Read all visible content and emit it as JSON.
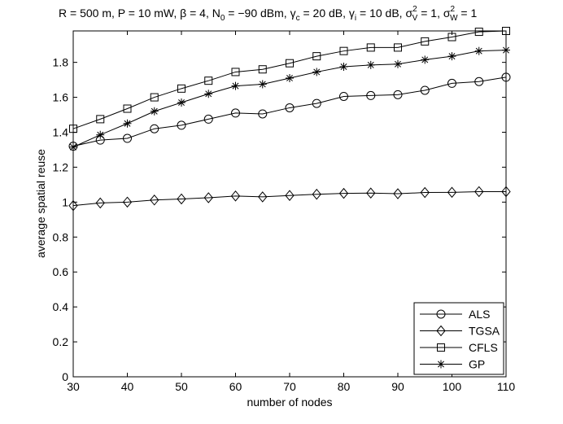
{
  "chart_data": {
    "type": "line",
    "title_parts": {
      "p1": "R = 500 m, P = 10 mW, ",
      "beta": "β",
      "p2": " = 4, N",
      "n0sub": "0",
      "p3": " = −90 dBm, ",
      "gamma": "γ",
      "gcsub": "c",
      "p4": " = 20 dB, ",
      "gisub": "i",
      "p5": " = 10 dB, ",
      "sigma": "σ",
      "sup2": "2",
      "vsub": "V",
      "wsub": "W",
      "p6": " = 1, ",
      "p7": " = 1"
    },
    "xlabel": "number of nodes",
    "ylabel": "average spatial reuse",
    "xlim": [
      30,
      110
    ],
    "ylim": [
      0,
      1.98
    ],
    "xticks": [
      "30",
      "40",
      "50",
      "60",
      "70",
      "80",
      "90",
      "100",
      "110"
    ],
    "yticks": [
      "0",
      "0.2",
      "0.4",
      "0.6",
      "0.8",
      "1",
      "1.2",
      "1.4",
      "1.6",
      "1.8"
    ],
    "x": [
      30,
      35,
      40,
      45,
      50,
      55,
      60,
      65,
      70,
      75,
      80,
      85,
      90,
      95,
      100,
      105,
      110
    ],
    "legend_position": "bottom-right",
    "grid": false,
    "series": [
      {
        "name": "ALS",
        "marker": "circle",
        "values": [
          1.32,
          1.355,
          1.365,
          1.42,
          1.44,
          1.475,
          1.51,
          1.505,
          1.54,
          1.565,
          1.605,
          1.61,
          1.615,
          1.64,
          1.68,
          1.69,
          1.715
        ]
      },
      {
        "name": "TGSA",
        "marker": "diamond",
        "values": [
          0.98,
          0.995,
          1.0,
          1.012,
          1.018,
          1.025,
          1.035,
          1.03,
          1.038,
          1.045,
          1.05,
          1.052,
          1.048,
          1.055,
          1.056,
          1.06,
          1.06
        ]
      },
      {
        "name": "CFLS",
        "marker": "square",
        "values": [
          1.42,
          1.475,
          1.535,
          1.6,
          1.65,
          1.695,
          1.745,
          1.76,
          1.795,
          1.835,
          1.865,
          1.885,
          1.885,
          1.92,
          1.945,
          1.975,
          1.98
        ]
      },
      {
        "name": "GP",
        "marker": "asterisk",
        "values": [
          1.315,
          1.385,
          1.45,
          1.52,
          1.57,
          1.62,
          1.665,
          1.675,
          1.71,
          1.745,
          1.775,
          1.785,
          1.79,
          1.815,
          1.835,
          1.865,
          1.87
        ]
      }
    ]
  }
}
